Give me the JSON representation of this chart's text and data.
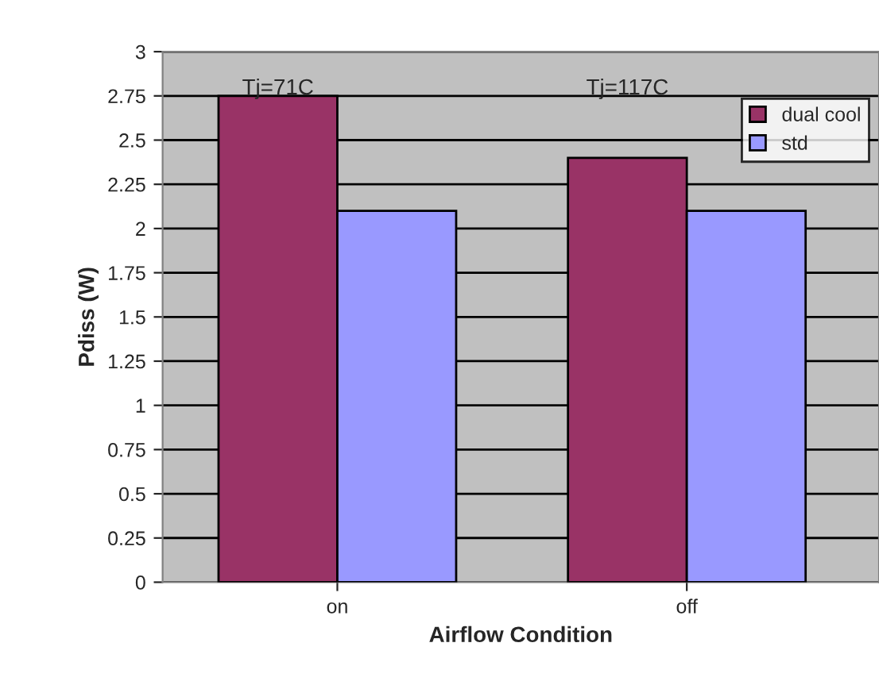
{
  "chart_data": {
    "type": "bar",
    "xlabel": "Airflow Condition",
    "ylabel": "Pdiss (W)",
    "categories": [
      "on",
      "off"
    ],
    "series": [
      {
        "name": "dual cool",
        "color": "#993366",
        "values": [
          2.75,
          2.4
        ]
      },
      {
        "name": "std",
        "color": "#9999ff",
        "values": [
          2.1,
          2.1
        ]
      }
    ],
    "ylim": [
      0,
      3
    ],
    "yticks": [
      0,
      0.25,
      0.5,
      0.75,
      1,
      1.25,
      1.5,
      1.75,
      2,
      2.25,
      2.5,
      2.75,
      3
    ],
    "grid": "y",
    "legend": "top right",
    "annotations": [
      "Tj=71C",
      "Tj=117C"
    ]
  }
}
